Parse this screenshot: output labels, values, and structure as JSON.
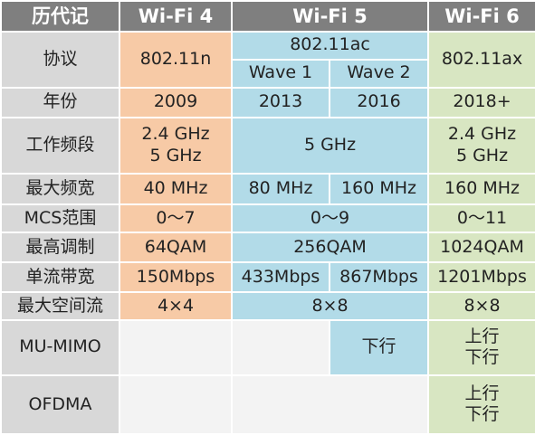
{
  "header": {
    "col0": "历代记",
    "col1": "Wi-Fi 4",
    "col2": "Wi-Fi 5",
    "col3": "Wi-Fi 6"
  },
  "rows": {
    "protocol": {
      "label": "协议",
      "wifi4": "802.11n",
      "wifi5": "802.11ac",
      "wifi5_wave1": "Wave 1",
      "wifi5_wave2": "Wave 2",
      "wifi6": "802.11ax"
    },
    "year": {
      "label": "年份",
      "wifi4": "2009",
      "wifi5_wave1": "2013",
      "wifi5_wave2": "2016",
      "wifi6": "2018+"
    },
    "band": {
      "label": "工作频段",
      "wifi4": [
        "2.4 GHz",
        "5 GHz"
      ],
      "wifi5": "5 GHz",
      "wifi6": [
        "2.4 GHz",
        "5 GHz"
      ]
    },
    "max_bandwidth": {
      "label": "最大频宽",
      "wifi4": "40 MHz",
      "wifi5_wave1": "80 MHz",
      "wifi5_wave2": "160 MHz",
      "wifi6": "160 MHz"
    },
    "mcs": {
      "label": "MCS范围",
      "wifi4": "0～7",
      "wifi5": "0～9",
      "wifi6": "0～11"
    },
    "modulation": {
      "label": "最高调制",
      "wifi4": "64QAM",
      "wifi5": "256QAM",
      "wifi6": "1024QAM"
    },
    "stream_bandwidth": {
      "label": "单流带宽",
      "wifi4": "150Mbps",
      "wifi5_wave1": "433Mbps",
      "wifi5_wave2": "867Mbps",
      "wifi6": "1201Mbps"
    },
    "spatial_streams": {
      "label": "最大空间流",
      "wifi4": "4×4",
      "wifi5": "8×8",
      "wifi6": "8×8"
    },
    "mu_mimo": {
      "label": "MU-MIMO",
      "wifi4": "",
      "wifi5_wave1": "",
      "wifi5_wave2": "下行",
      "wifi6": [
        "上行",
        "下行"
      ]
    },
    "ofdma": {
      "label": "OFDMA",
      "wifi4": "",
      "wifi5": "",
      "wifi6": [
        "上行",
        "下行"
      ]
    }
  },
  "colors": {
    "header_bg": "#7f7f7f",
    "label_bg": "#d8d8d8",
    "wifi4_bg": "#f7caa6",
    "wifi5_bg": "#b2dbe8",
    "wifi6_bg": "#d8e6c2",
    "empty_bg": "#f3f3f3"
  }
}
